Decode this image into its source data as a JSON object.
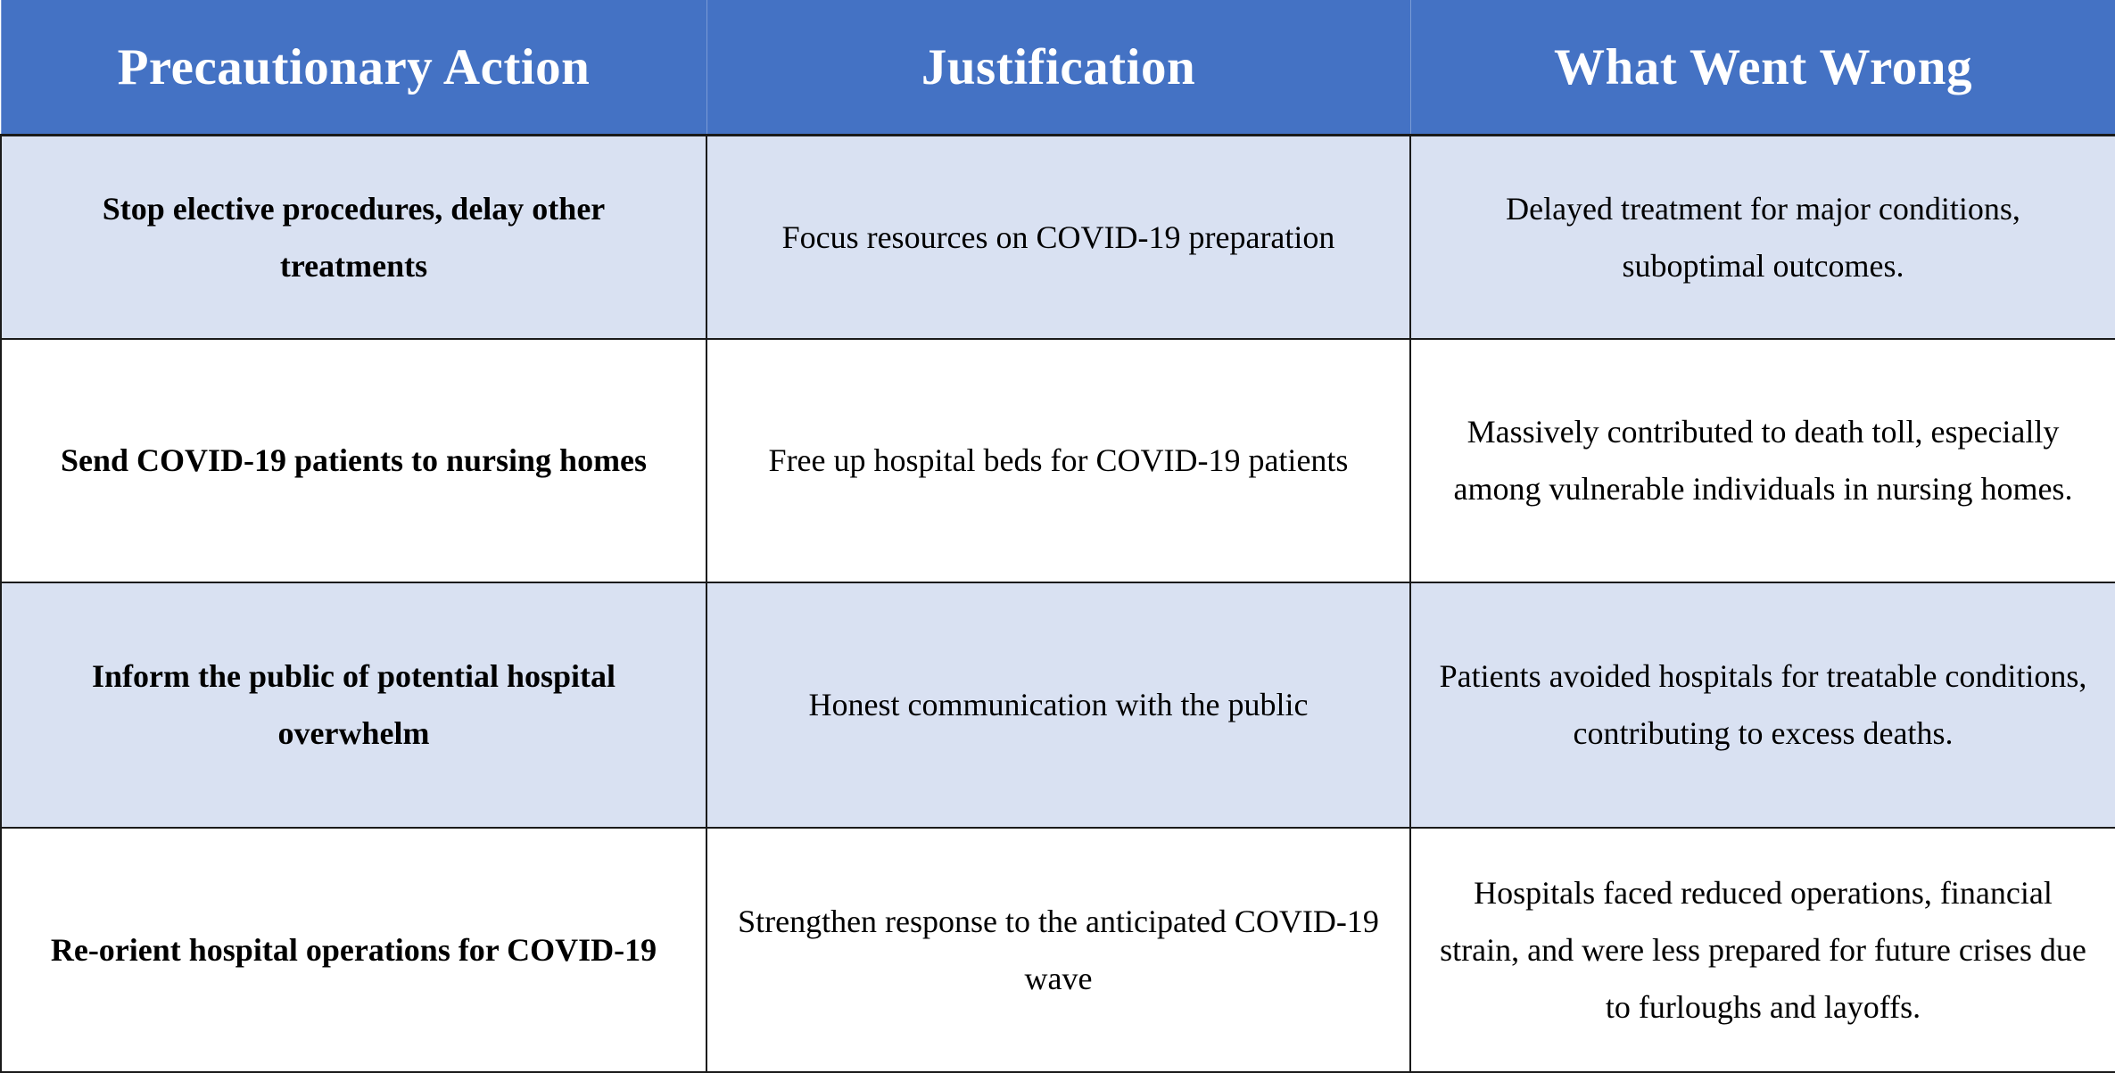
{
  "table": {
    "headers": [
      "Precautionary Action",
      "Justification",
      "What Went Wrong"
    ],
    "header_color": "#4472c4",
    "shaded_row_color": "#d9e1f2",
    "rows": [
      {
        "action": "Stop elective procedures, delay other treatments",
        "justification": "Focus resources on COVID-19 preparation",
        "what_went_wrong": "Delayed treatment for major conditions, suboptimal outcomes."
      },
      {
        "action": "Send COVID-19 patients to nursing homes",
        "justification": "Free up hospital beds for COVID-19 patients",
        "what_went_wrong": "Massively contributed to death toll, especially among vulnerable individuals in nursing homes."
      },
      {
        "action": "Inform the public of potential hospital overwhelm",
        "justification": "Honest communication with the public",
        "what_went_wrong": "Patients avoided hospitals for treatable conditions, contributing to excess deaths."
      },
      {
        "action": "Re-orient hospital operations for COVID-19",
        "justification": "Strengthen response to the anticipated COVID-19 wave",
        "what_went_wrong": "Hospitals faced reduced operations, financial strain, and were less prepared for future crises due to furloughs and layoffs."
      }
    ]
  }
}
